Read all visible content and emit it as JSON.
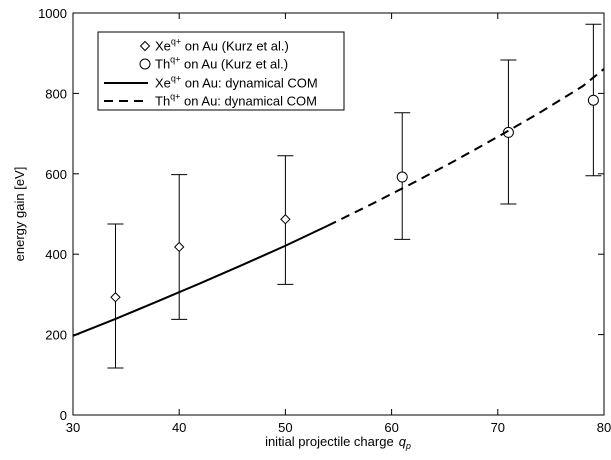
{
  "chart_data": {
    "type": "scatter",
    "xlabel": "initial projectile charge",
    "xlabel_symbol": "q",
    "xlabel_subscript": "p",
    "ylabel": "energy gain [eV]",
    "xlim": [
      30,
      80
    ],
    "ylim": [
      0,
      1000
    ],
    "xticks": [
      30,
      40,
      50,
      60,
      70,
      80
    ],
    "yticks": [
      0,
      200,
      400,
      600,
      800,
      1000
    ],
    "grid": false,
    "legend_position": "top-left",
    "series": [
      {
        "name": "Xe on Au (Kurz et al.)",
        "legend": {
          "pre": "Xe",
          "sup": "q+",
          "post": " on Au (Kurz et al.)"
        },
        "kind": "points",
        "marker": "diamond",
        "x": [
          34,
          40,
          50
        ],
        "y": [
          293,
          418,
          487
        ],
        "err_low": [
          117,
          238,
          325
        ],
        "err_high": [
          475,
          598,
          645
        ]
      },
      {
        "name": "Th on Au (Kurz et al.)",
        "legend": {
          "pre": "Th",
          "sup": "q+",
          "post": " on Au (Kurz et al.)"
        },
        "kind": "points",
        "marker": "circle",
        "x": [
          61,
          71,
          79
        ],
        "y": [
          592,
          703,
          783
        ],
        "err_low": [
          437,
          525,
          595
        ],
        "err_high": [
          752,
          883,
          972
        ]
      },
      {
        "name": "Xe on Au: dynamical COM",
        "legend": {
          "pre": "Xe",
          "sup": "q+",
          "post": " on Au: dynamical COM"
        },
        "kind": "line",
        "dash": "solid",
        "x": [
          30,
          34,
          38,
          42,
          46,
          50,
          54
        ],
        "y": [
          197,
          239,
          283,
          328,
          374,
          421,
          471
        ]
      },
      {
        "name": "Th on Au: dynamical COM",
        "legend": {
          "pre": "Th",
          "sup": "q+",
          "post": " on Au: dynamical COM"
        },
        "kind": "line",
        "dash": "dashed",
        "x": [
          54,
          58,
          62,
          66,
          70,
          74,
          78,
          80
        ],
        "y": [
          471,
          523,
          577,
          633,
          692,
          753,
          818,
          861
        ]
      }
    ]
  }
}
